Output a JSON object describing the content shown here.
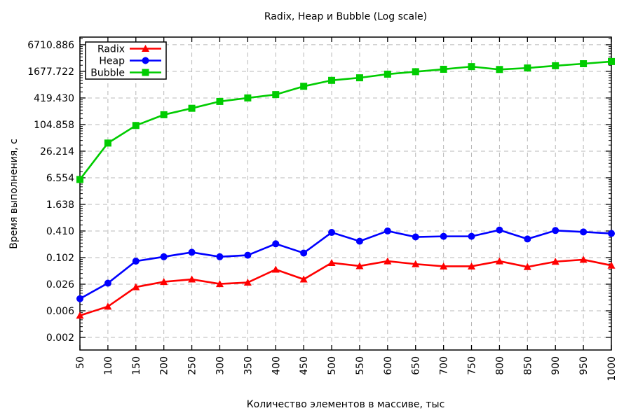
{
  "header": {
    "title": "Radix, Heap и Bubble (Log scale)"
  },
  "chart_data": {
    "type": "line",
    "title": "Radix, Heap и Bubble (Log scale)",
    "xlabel": "Количество элементов в массиве, тыс",
    "ylabel": "Время выполнения, с",
    "y_scale": "log",
    "log_base": 4,
    "grid": true,
    "legend_position": "top-left",
    "xlim": [
      50,
      1000
    ],
    "ylim": [
      0.00083,
      10000
    ],
    "x": [
      50,
      100,
      150,
      200,
      250,
      300,
      350,
      400,
      450,
      500,
      550,
      600,
      650,
      700,
      750,
      800,
      850,
      900,
      950,
      1000
    ],
    "x_tick_labels": [
      "50",
      "100",
      "150",
      "200",
      "250",
      "300",
      "350",
      "400",
      "450",
      "500",
      "550",
      "600",
      "650",
      "700",
      "750",
      "800",
      "850",
      "900",
      "950",
      "1000"
    ],
    "y_ticks": [
      {
        "value": 6710.8864,
        "label": "6710.886"
      },
      {
        "value": 1677.7216,
        "label": "1677.722"
      },
      {
        "value": 419.4304,
        "label": "419.430"
      },
      {
        "value": 104.8576,
        "label": "104.858"
      },
      {
        "value": 26.2144,
        "label": "26.214"
      },
      {
        "value": 6.5536,
        "label": "6.554"
      },
      {
        "value": 1.6384,
        "label": "1.638"
      },
      {
        "value": 0.4096,
        "label": "0.410"
      },
      {
        "value": 0.1024,
        "label": "0.102"
      },
      {
        "value": 0.0256,
        "label": "0.026"
      },
      {
        "value": 0.0064,
        "label": "0.006"
      },
      {
        "value": 0.0016,
        "label": "0.002"
      }
    ],
    "series": [
      {
        "name": "Radix",
        "color": "#ff0000",
        "marker": "triangle",
        "values": [
          0.005,
          0.008,
          0.022,
          0.029,
          0.033,
          0.026,
          0.028,
          0.055,
          0.033,
          0.078,
          0.066,
          0.085,
          0.073,
          0.065,
          0.065,
          0.085,
          0.063,
          0.083,
          0.092,
          0.068
        ]
      },
      {
        "name": "Heap",
        "color": "#0000ff",
        "marker": "circle",
        "values": [
          0.012,
          0.027,
          0.085,
          0.107,
          0.135,
          0.107,
          0.116,
          0.21,
          0.13,
          0.38,
          0.24,
          0.41,
          0.3,
          0.31,
          0.31,
          0.43,
          0.27,
          0.42,
          0.39,
          0.36
        ]
      },
      {
        "name": "Bubble",
        "color": "#00cc00",
        "marker": "square",
        "values": [
          6.0,
          40,
          100,
          175,
          245,
          350,
          420,
          500,
          770,
          1050,
          1200,
          1450,
          1650,
          1870,
          2150,
          1850,
          2000,
          2250,
          2500,
          2800
        ]
      }
    ],
    "colors": {
      "axis": "#000000",
      "grid": "#b8b8b8",
      "background": "#ffffff"
    }
  }
}
